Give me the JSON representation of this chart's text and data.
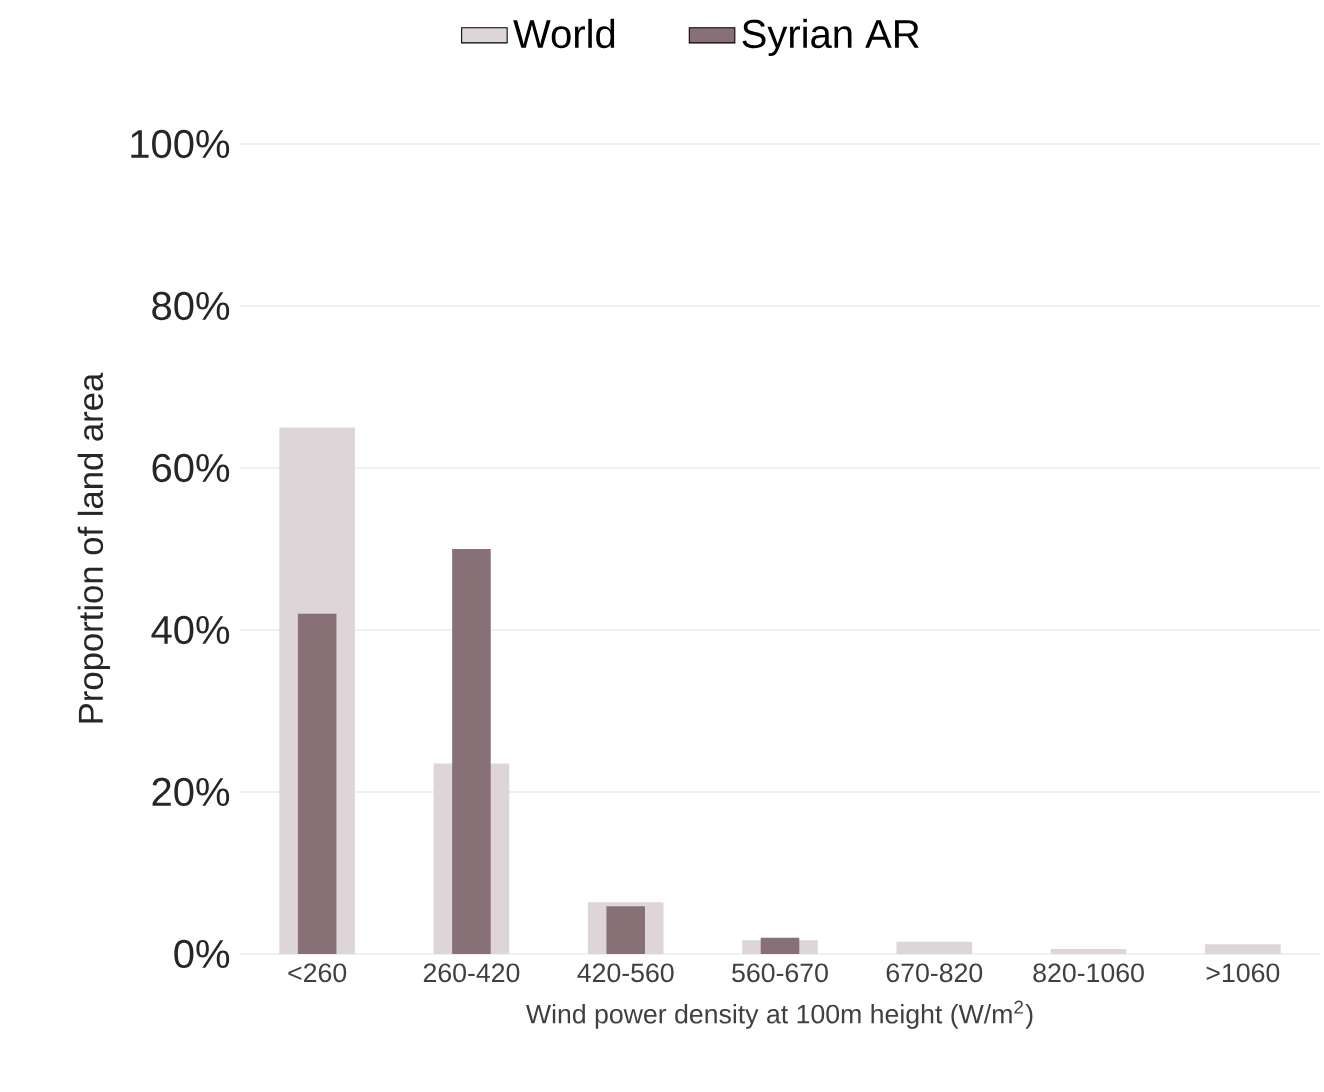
{
  "chart_data": {
    "type": "bar",
    "xlabel": "Wind power density at 100m height (W/m$^{2}$)",
    "ylabel": "Proportion of land area",
    "categories": [
      "<260",
      "260-420",
      "420-560",
      "560-670",
      "670-820",
      "820-1060",
      ">1060"
    ],
    "series": [
      {
        "name": "World",
        "color": "#ddd5d7",
        "values": [
          65,
          23.5,
          6.4,
          1.7,
          1.5,
          0.6,
          1.2
        ]
      },
      {
        "name": "Syrian AR",
        "color": "#877176",
        "values": [
          42,
          50,
          5.9,
          2.0,
          0,
          0,
          0
        ]
      }
    ],
    "ylim": [
      0,
      100
    ],
    "yticks": [
      {
        "value": 0,
        "label": "0%"
      },
      {
        "value": 20,
        "label": "20%"
      },
      {
        "value": 40,
        "label": "40%"
      },
      {
        "value": 60,
        "label": "60%"
      },
      {
        "value": 80,
        "label": "80%"
      },
      {
        "value": 100,
        "label": "100%"
      }
    ],
    "grid": "y",
    "legend": "top"
  }
}
